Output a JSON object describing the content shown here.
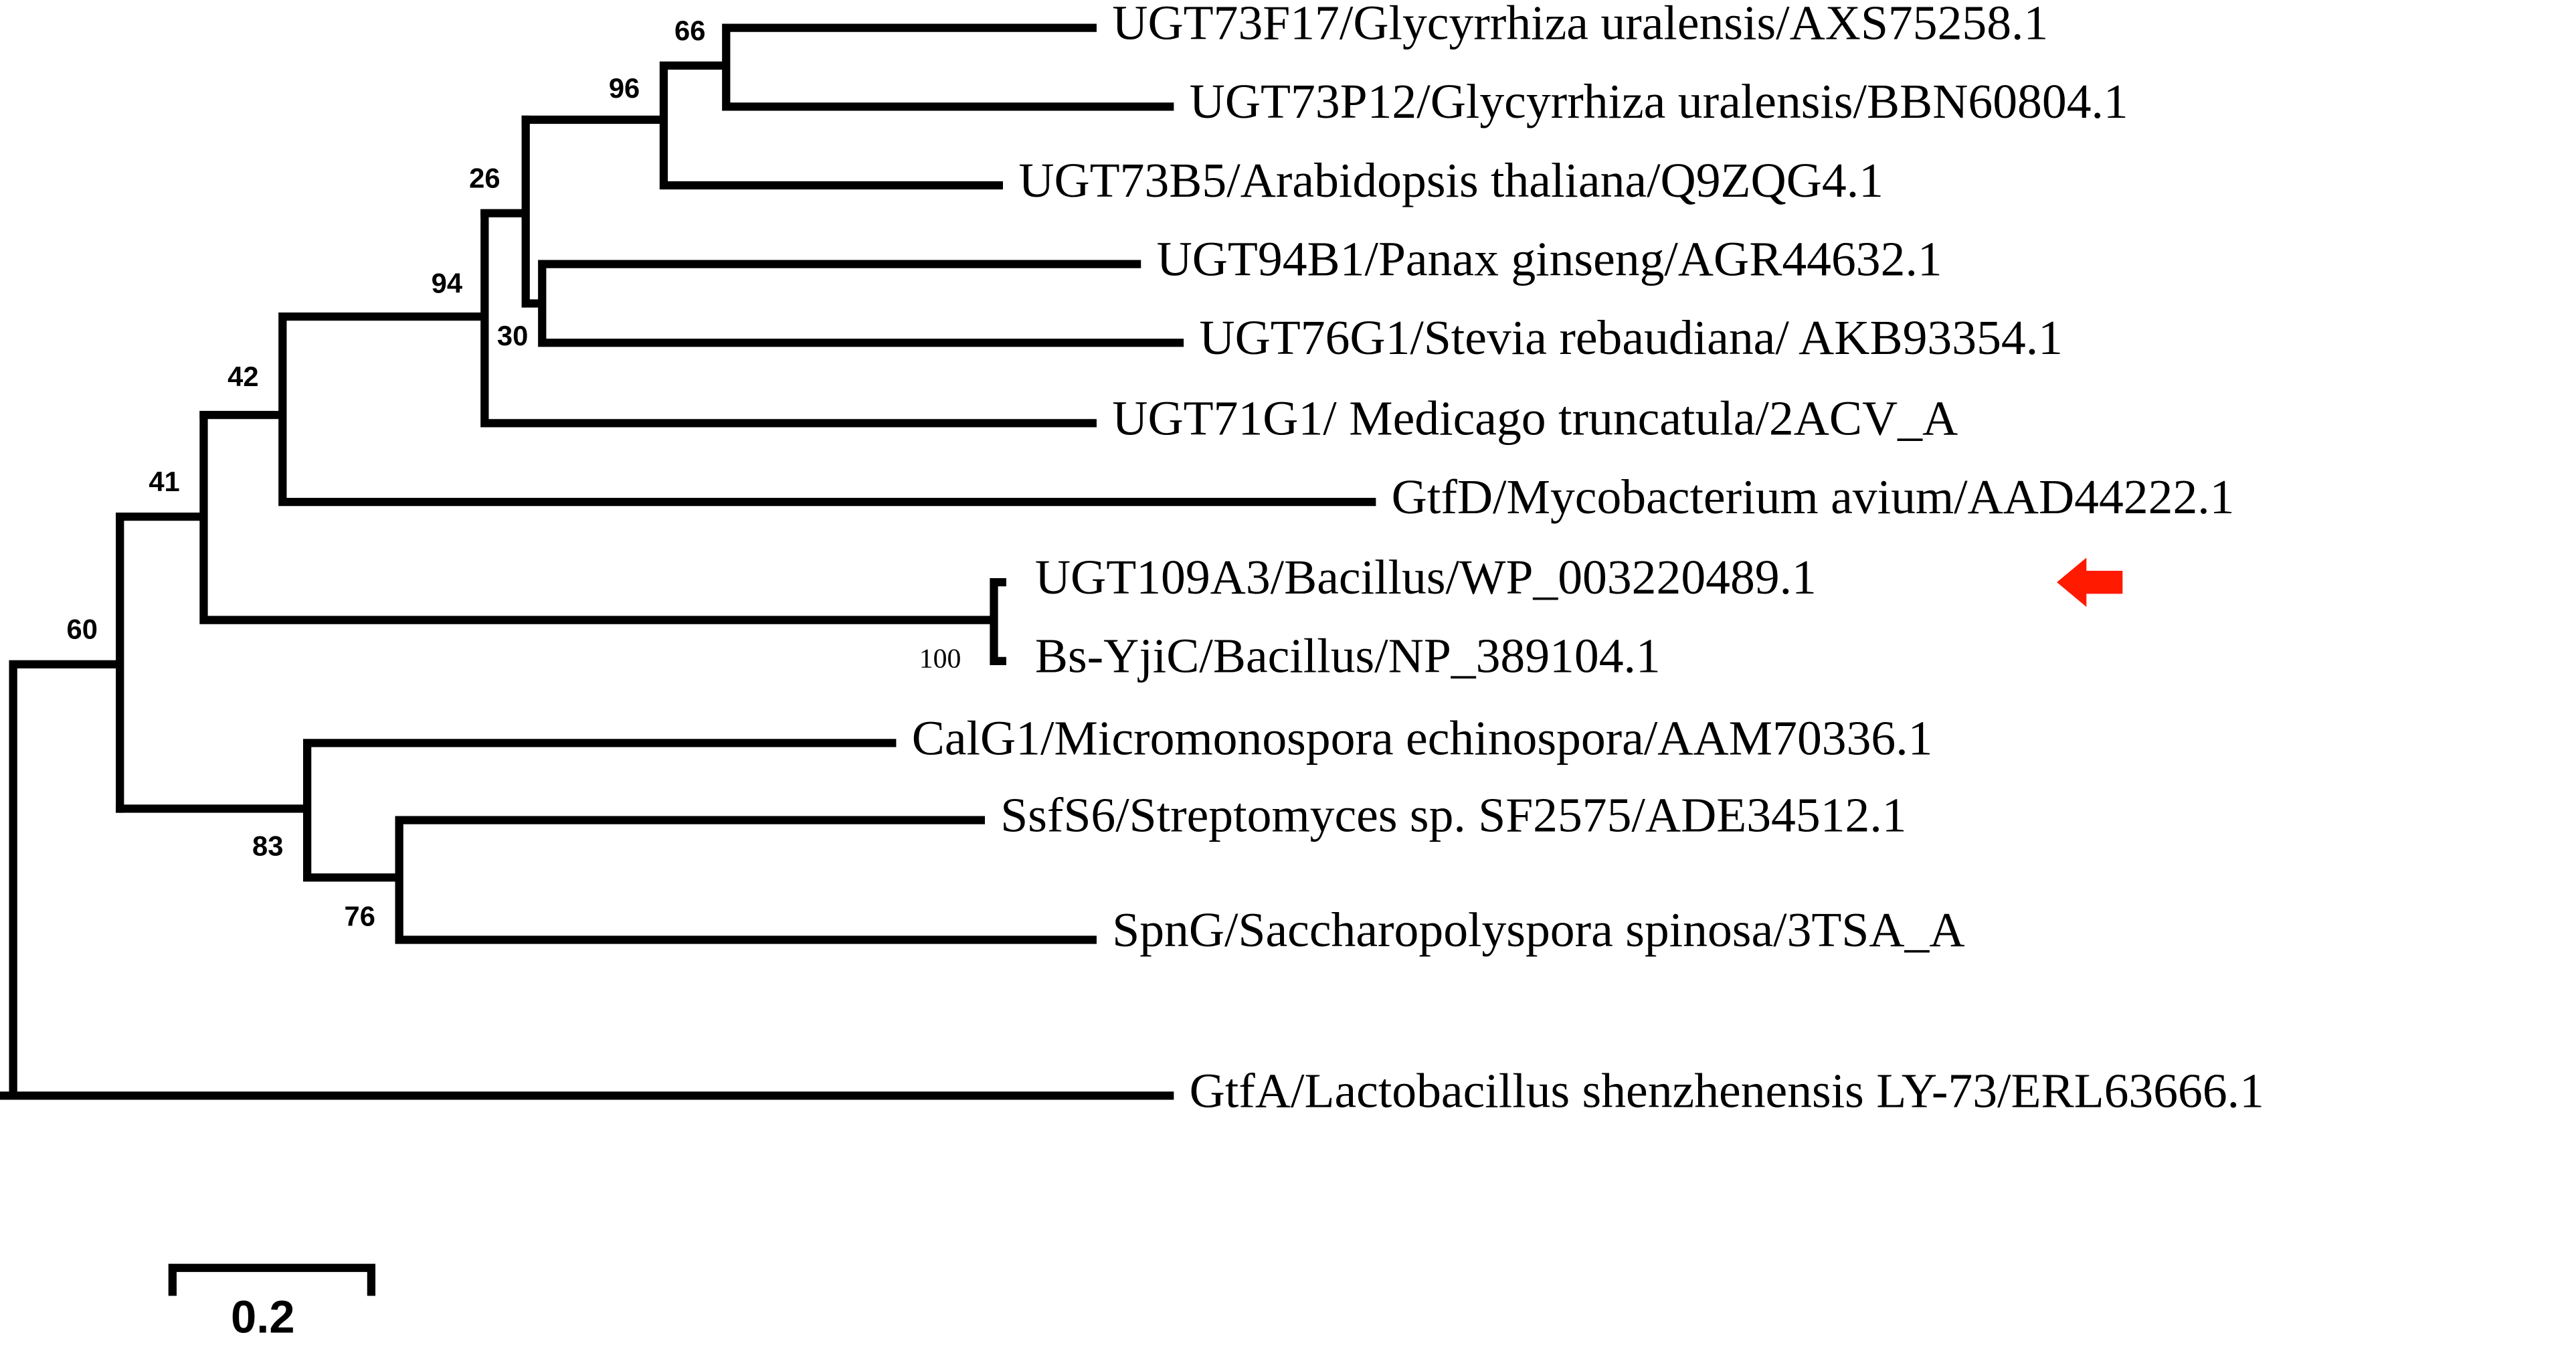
{
  "leaves": [
    "UGT73F17/Glycyrrhiza uralensis/AXS75258.1",
    "UGT73P12/Glycyrrhiza uralensis/BBN60804.1",
    "UGT73B5/Arabidopsis thaliana/Q9ZQG4.1",
    "UGT94B1/Panax ginseng/AGR44632.1",
    "UGT76G1/Stevia rebaudiana/ AKB93354.1",
    "UGT71G1/ Medicago truncatula/2ACV_A",
    "GtfD/Mycobacterium avium/AAD44222.1",
    "UGT109A3/Bacillus/WP_003220489.1",
    "Bs-YjiC/Bacillus/NP_389104.1",
    "CalG1/Micromonospora echinospora/AAM70336.1",
    "SsfS6/Streptomyces sp. SF2575/ADE34512.1",
    "SpnG/Saccharopolyspora spinosa/3TSA_A",
    "GtfA/Lactobacillus shenzhenensis LY-73/ERL63666.1"
  ],
  "bootstrap": [
    66,
    96,
    26,
    94,
    30,
    42,
    41,
    60,
    100,
    83,
    76
  ],
  "scale_bar": {
    "label": "0.2"
  }
}
